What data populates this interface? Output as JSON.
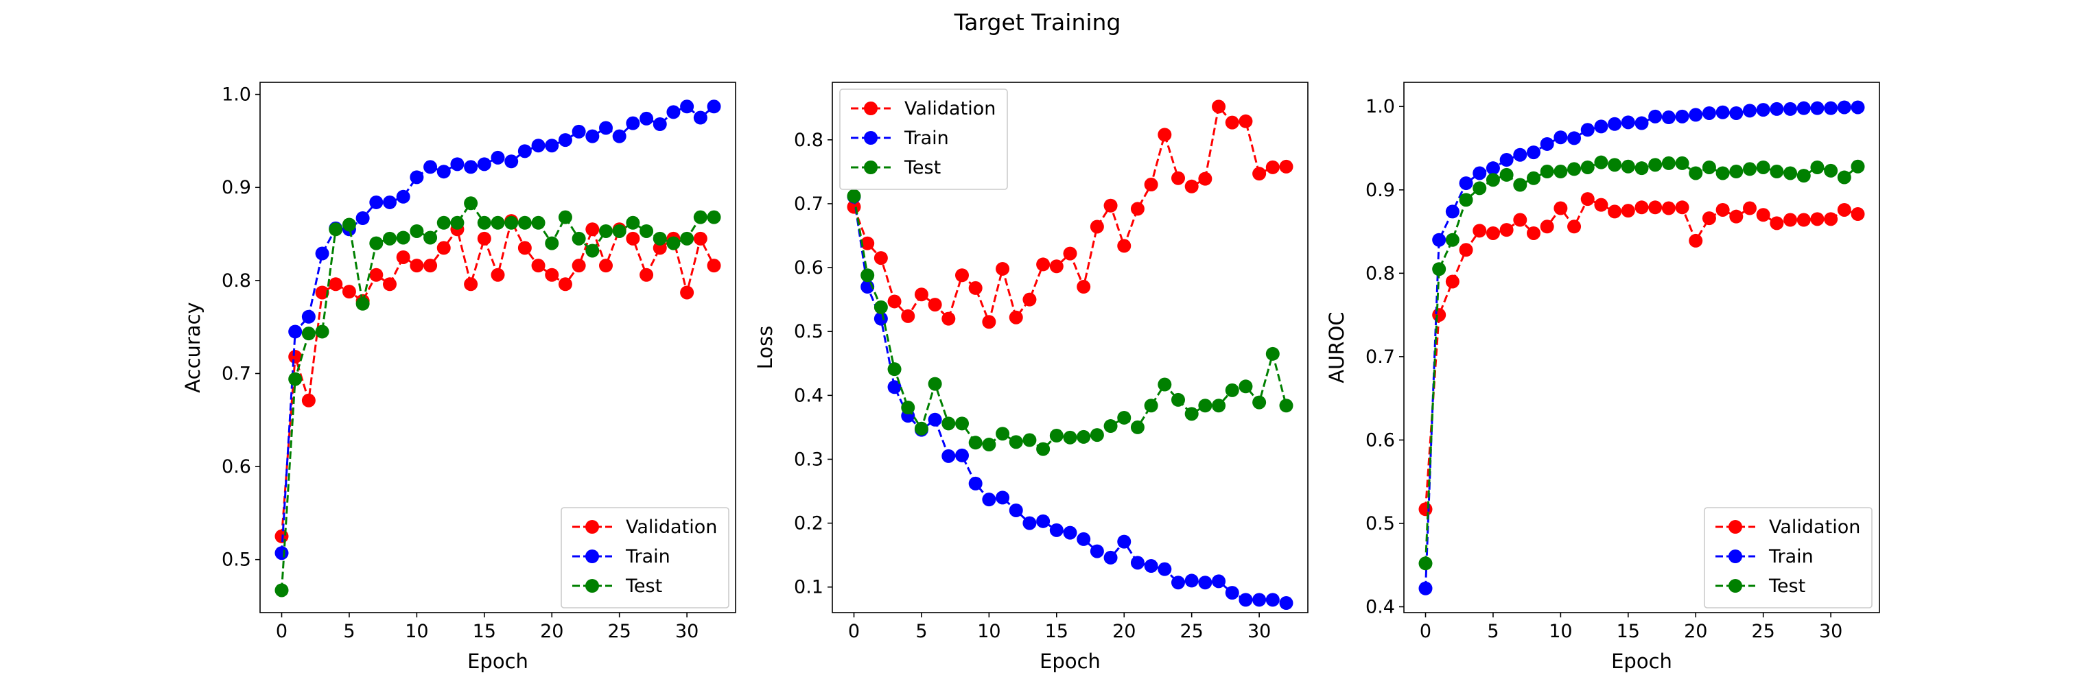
{
  "figure": {
    "title": "Target Training",
    "colors": {
      "Validation": "#ff0000",
      "Train": "#0000ff",
      "Test": "#008000"
    }
  },
  "chart_data": [
    {
      "type": "line",
      "title": "",
      "xlabel": "Epoch",
      "ylabel": "Accuracy",
      "xlim": [
        -1.6,
        33.6
      ],
      "ylim": [
        0.443,
        1.013
      ],
      "xticks": [
        "0",
        "5",
        "10",
        "15",
        "20",
        "25",
        "30"
      ],
      "xtick_values": [
        0,
        5,
        10,
        15,
        20,
        25,
        30
      ],
      "yticks": [
        "0.5",
        "0.6",
        "0.7",
        "0.8",
        "0.9",
        "1.0"
      ],
      "ytick_values": [
        0.5,
        0.6,
        0.7,
        0.8,
        0.9,
        1.0
      ],
      "legend_position": "lower-right",
      "x": [
        0,
        1,
        2,
        3,
        4,
        5,
        6,
        7,
        8,
        9,
        10,
        11,
        12,
        13,
        14,
        15,
        16,
        17,
        18,
        19,
        20,
        21,
        22,
        23,
        24,
        25,
        26,
        27,
        28,
        29,
        30,
        31,
        32
      ],
      "series": [
        {
          "name": "Validation",
          "values": [
            0.525,
            0.718,
            0.671,
            0.787,
            0.796,
            0.788,
            0.778,
            0.806,
            0.796,
            0.825,
            0.816,
            0.816,
            0.835,
            0.855,
            0.796,
            0.845,
            0.806,
            0.864,
            0.835,
            0.816,
            0.806,
            0.796,
            0.816,
            0.855,
            0.816,
            0.855,
            0.845,
            0.806,
            0.835,
            0.845,
            0.787,
            0.845,
            0.816
          ]
        },
        {
          "name": "Train",
          "values": [
            0.507,
            0.745,
            0.761,
            0.829,
            0.856,
            0.855,
            0.867,
            0.884,
            0.884,
            0.89,
            0.911,
            0.922,
            0.917,
            0.925,
            0.922,
            0.925,
            0.932,
            0.928,
            0.939,
            0.945,
            0.945,
            0.951,
            0.96,
            0.955,
            0.964,
            0.955,
            0.969,
            0.974,
            0.968,
            0.981,
            0.987,
            0.975,
            0.987
          ]
        },
        {
          "name": "Test",
          "values": [
            0.467,
            0.694,
            0.743,
            0.745,
            0.855,
            0.86,
            0.775,
            0.84,
            0.845,
            0.846,
            0.853,
            0.846,
            0.862,
            0.862,
            0.883,
            0.862,
            0.862,
            0.862,
            0.862,
            0.862,
            0.84,
            0.868,
            0.845,
            0.832,
            0.853,
            0.853,
            0.862,
            0.853,
            0.845,
            0.84,
            0.845,
            0.868,
            0.868
          ]
        }
      ]
    },
    {
      "type": "line",
      "title": "",
      "xlabel": "Epoch",
      "ylabel": "Loss",
      "xlim": [
        -1.6,
        33.6
      ],
      "ylim": [
        0.06,
        0.89
      ],
      "xticks": [
        "0",
        "5",
        "10",
        "15",
        "20",
        "25",
        "30"
      ],
      "xtick_values": [
        0,
        5,
        10,
        15,
        20,
        25,
        30
      ],
      "yticks": [
        "0.1",
        "0.2",
        "0.3",
        "0.4",
        "0.5",
        "0.6",
        "0.7",
        "0.8"
      ],
      "ytick_values": [
        0.1,
        0.2,
        0.3,
        0.4,
        0.5,
        0.6,
        0.7,
        0.8
      ],
      "legend_position": "upper-left",
      "x": [
        0,
        1,
        2,
        3,
        4,
        5,
        6,
        7,
        8,
        9,
        10,
        11,
        12,
        13,
        14,
        15,
        16,
        17,
        18,
        19,
        20,
        21,
        22,
        23,
        24,
        25,
        26,
        27,
        28,
        29,
        30,
        31,
        32
      ],
      "series": [
        {
          "name": "Validation",
          "values": [
            0.695,
            0.638,
            0.615,
            0.547,
            0.524,
            0.558,
            0.542,
            0.52,
            0.588,
            0.568,
            0.515,
            0.598,
            0.522,
            0.55,
            0.605,
            0.602,
            0.622,
            0.57,
            0.664,
            0.697,
            0.634,
            0.692,
            0.73,
            0.808,
            0.74,
            0.727,
            0.739,
            0.852,
            0.827,
            0.829,
            0.747,
            0.757,
            0.758
          ]
        },
        {
          "name": "Train",
          "values": [
            0.711,
            0.57,
            0.52,
            0.413,
            0.368,
            0.346,
            0.362,
            0.305,
            0.306,
            0.262,
            0.237,
            0.24,
            0.22,
            0.2,
            0.203,
            0.189,
            0.185,
            0.175,
            0.156,
            0.146,
            0.171,
            0.138,
            0.133,
            0.128,
            0.107,
            0.11,
            0.107,
            0.109,
            0.091,
            0.08,
            0.08,
            0.08,
            0.075
          ]
        },
        {
          "name": "Test",
          "values": [
            0.712,
            0.588,
            0.538,
            0.441,
            0.381,
            0.348,
            0.418,
            0.356,
            0.356,
            0.326,
            0.323,
            0.34,
            0.327,
            0.33,
            0.316,
            0.337,
            0.334,
            0.335,
            0.338,
            0.352,
            0.365,
            0.35,
            0.384,
            0.417,
            0.393,
            0.371,
            0.384,
            0.384,
            0.408,
            0.414,
            0.389,
            0.465,
            0.384
          ]
        }
      ]
    },
    {
      "type": "line",
      "title": "",
      "xlabel": "Epoch",
      "ylabel": "AUROC",
      "xlim": [
        -1.6,
        33.6
      ],
      "ylim": [
        0.393,
        1.029
      ],
      "xticks": [
        "0",
        "5",
        "10",
        "15",
        "20",
        "25",
        "30"
      ],
      "xtick_values": [
        0,
        5,
        10,
        15,
        20,
        25,
        30
      ],
      "yticks": [
        "0.4",
        "0.5",
        "0.6",
        "0.7",
        "0.8",
        "0.9",
        "1.0"
      ],
      "ytick_values": [
        0.4,
        0.5,
        0.6,
        0.7,
        0.8,
        0.9,
        1.0
      ],
      "legend_position": "lower-right",
      "x": [
        0,
        1,
        2,
        3,
        4,
        5,
        6,
        7,
        8,
        9,
        10,
        11,
        12,
        13,
        14,
        15,
        16,
        17,
        18,
        19,
        20,
        21,
        22,
        23,
        24,
        25,
        26,
        27,
        28,
        29,
        30,
        31,
        32
      ],
      "series": [
        {
          "name": "Validation",
          "values": [
            0.517,
            0.75,
            0.79,
            0.828,
            0.851,
            0.848,
            0.852,
            0.864,
            0.848,
            0.856,
            0.878,
            0.856,
            0.889,
            0.882,
            0.874,
            0.875,
            0.879,
            0.879,
            0.878,
            0.879,
            0.839,
            0.866,
            0.876,
            0.868,
            0.878,
            0.87,
            0.86,
            0.864,
            0.864,
            0.865,
            0.865,
            0.876,
            0.871
          ]
        },
        {
          "name": "Train",
          "values": [
            0.422,
            0.84,
            0.874,
            0.908,
            0.92,
            0.926,
            0.936,
            0.942,
            0.945,
            0.955,
            0.963,
            0.962,
            0.972,
            0.976,
            0.979,
            0.981,
            0.98,
            0.988,
            0.987,
            0.988,
            0.99,
            0.992,
            0.993,
            0.992,
            0.995,
            0.996,
            0.997,
            0.997,
            0.998,
            0.998,
            0.998,
            0.999,
            0.999
          ]
        },
        {
          "name": "Test",
          "values": [
            0.452,
            0.805,
            0.84,
            0.888,
            0.902,
            0.912,
            0.918,
            0.906,
            0.914,
            0.922,
            0.922,
            0.925,
            0.927,
            0.933,
            0.93,
            0.928,
            0.926,
            0.93,
            0.932,
            0.932,
            0.92,
            0.927,
            0.92,
            0.922,
            0.925,
            0.927,
            0.922,
            0.92,
            0.917,
            0.927,
            0.923,
            0.915,
            0.928
          ]
        }
      ]
    }
  ]
}
